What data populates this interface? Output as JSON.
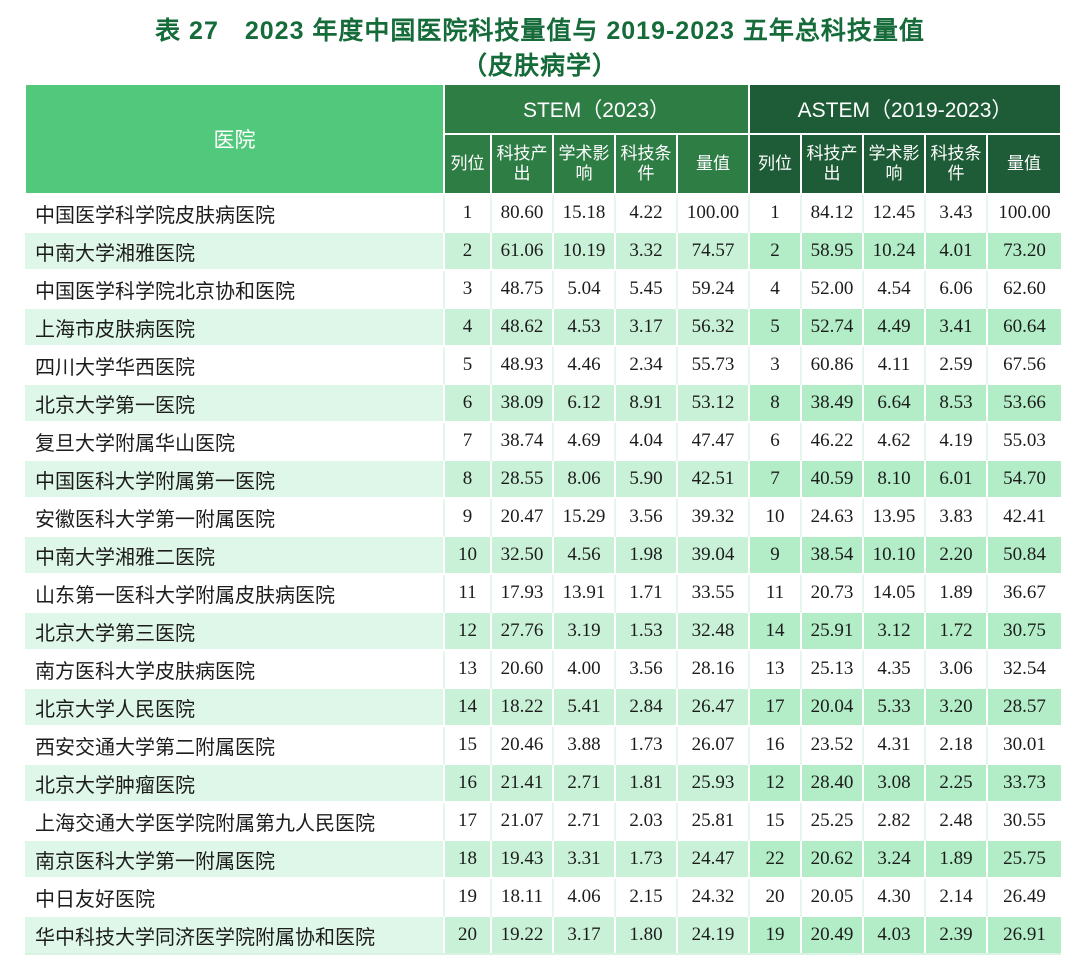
{
  "title": {
    "line1": "表 27　2023 年度中国医院科技量值与 2019-2023 五年总科技量值",
    "line2": "（皮肤病学）"
  },
  "table": {
    "hospital_header": "医院",
    "stem_label": "STEM（2023）",
    "astem_label": "ASTEM（2019-2023）",
    "sub_headers": [
      "列位",
      "科技产出",
      "学术影响",
      "科技条件",
      "量值"
    ]
  },
  "colors": {
    "title_green": "#156b39",
    "hospital_header_bg": "#52c87c",
    "stem_header_bg": "#2e7d45",
    "astem_header_bg": "#1d5c36",
    "stripe_hospital": "#dff7e8",
    "stripe_stem": "#c9f1d7",
    "stripe_astem": "#b2edc7"
  },
  "rows": [
    {
      "hospital": "中国医学科学院皮肤病医院",
      "stem": [
        "1",
        "80.60",
        "15.18",
        "4.22",
        "100.00"
      ],
      "astem": [
        "1",
        "84.12",
        "12.45",
        "3.43",
        "100.00"
      ]
    },
    {
      "hospital": "中南大学湘雅医院",
      "stem": [
        "2",
        "61.06",
        "10.19",
        "3.32",
        "74.57"
      ],
      "astem": [
        "2",
        "58.95",
        "10.24",
        "4.01",
        "73.20"
      ]
    },
    {
      "hospital": "中国医学科学院北京协和医院",
      "stem": [
        "3",
        "48.75",
        "5.04",
        "5.45",
        "59.24"
      ],
      "astem": [
        "4",
        "52.00",
        "4.54",
        "6.06",
        "62.60"
      ]
    },
    {
      "hospital": "上海市皮肤病医院",
      "stem": [
        "4",
        "48.62",
        "4.53",
        "3.17",
        "56.32"
      ],
      "astem": [
        "5",
        "52.74",
        "4.49",
        "3.41",
        "60.64"
      ]
    },
    {
      "hospital": "四川大学华西医院",
      "stem": [
        "5",
        "48.93",
        "4.46",
        "2.34",
        "55.73"
      ],
      "astem": [
        "3",
        "60.86",
        "4.11",
        "2.59",
        "67.56"
      ]
    },
    {
      "hospital": "北京大学第一医院",
      "stem": [
        "6",
        "38.09",
        "6.12",
        "8.91",
        "53.12"
      ],
      "astem": [
        "8",
        "38.49",
        "6.64",
        "8.53",
        "53.66"
      ]
    },
    {
      "hospital": "复旦大学附属华山医院",
      "stem": [
        "7",
        "38.74",
        "4.69",
        "4.04",
        "47.47"
      ],
      "astem": [
        "6",
        "46.22",
        "4.62",
        "4.19",
        "55.03"
      ]
    },
    {
      "hospital": "中国医科大学附属第一医院",
      "stem": [
        "8",
        "28.55",
        "8.06",
        "5.90",
        "42.51"
      ],
      "astem": [
        "7",
        "40.59",
        "8.10",
        "6.01",
        "54.70"
      ]
    },
    {
      "hospital": "安徽医科大学第一附属医院",
      "stem": [
        "9",
        "20.47",
        "15.29",
        "3.56",
        "39.32"
      ],
      "astem": [
        "10",
        "24.63",
        "13.95",
        "3.83",
        "42.41"
      ]
    },
    {
      "hospital": "中南大学湘雅二医院",
      "stem": [
        "10",
        "32.50",
        "4.56",
        "1.98",
        "39.04"
      ],
      "astem": [
        "9",
        "38.54",
        "10.10",
        "2.20",
        "50.84"
      ]
    },
    {
      "hospital": "山东第一医科大学附属皮肤病医院",
      "stem": [
        "11",
        "17.93",
        "13.91",
        "1.71",
        "33.55"
      ],
      "astem": [
        "11",
        "20.73",
        "14.05",
        "1.89",
        "36.67"
      ]
    },
    {
      "hospital": "北京大学第三医院",
      "stem": [
        "12",
        "27.76",
        "3.19",
        "1.53",
        "32.48"
      ],
      "astem": [
        "14",
        "25.91",
        "3.12",
        "1.72",
        "30.75"
      ]
    },
    {
      "hospital": "南方医科大学皮肤病医院",
      "stem": [
        "13",
        "20.60",
        "4.00",
        "3.56",
        "28.16"
      ],
      "astem": [
        "13",
        "25.13",
        "4.35",
        "3.06",
        "32.54"
      ]
    },
    {
      "hospital": "北京大学人民医院",
      "stem": [
        "14",
        "18.22",
        "5.41",
        "2.84",
        "26.47"
      ],
      "astem": [
        "17",
        "20.04",
        "5.33",
        "3.20",
        "28.57"
      ]
    },
    {
      "hospital": "西安交通大学第二附属医院",
      "stem": [
        "15",
        "20.46",
        "3.88",
        "1.73",
        "26.07"
      ],
      "astem": [
        "16",
        "23.52",
        "4.31",
        "2.18",
        "30.01"
      ]
    },
    {
      "hospital": "北京大学肿瘤医院",
      "stem": [
        "16",
        "21.41",
        "2.71",
        "1.81",
        "25.93"
      ],
      "astem": [
        "12",
        "28.40",
        "3.08",
        "2.25",
        "33.73"
      ]
    },
    {
      "hospital": "上海交通大学医学院附属第九人民医院",
      "stem": [
        "17",
        "21.07",
        "2.71",
        "2.03",
        "25.81"
      ],
      "astem": [
        "15",
        "25.25",
        "2.82",
        "2.48",
        "30.55"
      ]
    },
    {
      "hospital": "南京医科大学第一附属医院",
      "stem": [
        "18",
        "19.43",
        "3.31",
        "1.73",
        "24.47"
      ],
      "astem": [
        "22",
        "20.62",
        "3.24",
        "1.89",
        "25.75"
      ]
    },
    {
      "hospital": "中日友好医院",
      "stem": [
        "19",
        "18.11",
        "4.06",
        "2.15",
        "24.32"
      ],
      "astem": [
        "20",
        "20.05",
        "4.30",
        "2.14",
        "26.49"
      ]
    },
    {
      "hospital": "华中科技大学同济医学院附属协和医院",
      "stem": [
        "20",
        "19.22",
        "3.17",
        "1.80",
        "24.19"
      ],
      "astem": [
        "19",
        "20.49",
        "4.03",
        "2.39",
        "26.91"
      ]
    }
  ]
}
